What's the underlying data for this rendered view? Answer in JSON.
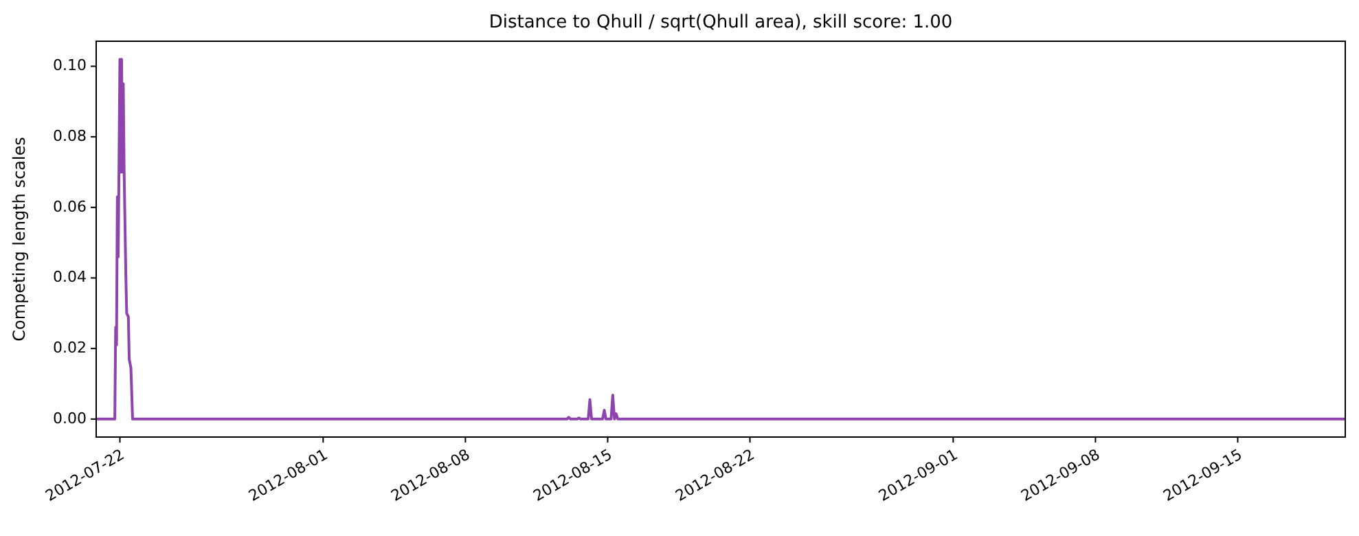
{
  "chart_data": {
    "type": "line",
    "title": "Distance to Qhull / sqrt(Qhull area), skill score: 1.00",
    "ylabel": "Competing length scales",
    "x": [
      "2012-07-20T20:00",
      "2012-07-21T18:00",
      "2012-07-21T19:00",
      "2012-07-21T20:00",
      "2012-07-21T21:00",
      "2012-07-21T22:00",
      "2012-07-22T00:00",
      "2012-07-22T01:00",
      "2012-07-22T02:00",
      "2012-07-22T03:00",
      "2012-07-22T04:00",
      "2012-07-22T05:00",
      "2012-07-22T07:00",
      "2012-07-22T08:00",
      "2012-07-22T10:00",
      "2012-07-22T11:00",
      "2012-07-22T13:00",
      "2012-07-22T15:00",
      "2012-08-13T00:00",
      "2012-08-13T02:00",
      "2012-08-13T04:00",
      "2012-08-13T12:00",
      "2012-08-13T14:00",
      "2012-08-13T16:00",
      "2012-08-14T01:00",
      "2012-08-14T03:00",
      "2012-08-14T05:00",
      "2012-08-14T18:00",
      "2012-08-14T20:00",
      "2012-08-14T22:00",
      "2012-08-15T04:00",
      "2012-08-15T06:00",
      "2012-08-15T08:00",
      "2012-08-15T10:00",
      "2012-08-15T12:00",
      "2012-09-20T07:00"
    ],
    "series": [
      {
        "color": "#8e44ad",
        "values": [
          0,
          0,
          0.026,
          0.021,
          0.063,
          0.046,
          0.102,
          0.07,
          0.102,
          0.07,
          0.095,
          0.07,
          0.041,
          0.03,
          0.029,
          0.017,
          0.0145,
          0,
          0,
          0.0005,
          0,
          0,
          0.0003,
          0,
          0,
          0.0055,
          0,
          0,
          0.0025,
          0,
          0,
          0.0068,
          0,
          0.0015,
          0,
          0
        ]
      }
    ],
    "xlim": [
      "2012-07-20T20:00",
      "2012-09-20T07:00"
    ],
    "xticks": [
      {
        "value": "2012-07-22",
        "label": "2012-07-22"
      },
      {
        "value": "2012-08-01",
        "label": "2012-08-01"
      },
      {
        "value": "2012-08-08",
        "label": "2012-08-08"
      },
      {
        "value": "2012-08-15",
        "label": "2012-08-15"
      },
      {
        "value": "2012-08-22",
        "label": "2012-08-22"
      },
      {
        "value": "2012-09-01",
        "label": "2012-09-01"
      },
      {
        "value": "2012-09-08",
        "label": "2012-09-08"
      },
      {
        "value": "2012-09-15",
        "label": "2012-09-15"
      }
    ],
    "ylim": [
      -0.0051,
      0.1071
    ],
    "yticks": [
      {
        "value": 0,
        "label": "0.00"
      },
      {
        "value": 0.02,
        "label": "0.02"
      },
      {
        "value": 0.04,
        "label": "0.04"
      },
      {
        "value": 0.06,
        "label": "0.06"
      },
      {
        "value": 0.08,
        "label": "0.08"
      },
      {
        "value": 0.1,
        "label": "0.10"
      }
    ],
    "grid": false,
    "line_style": "solid"
  }
}
